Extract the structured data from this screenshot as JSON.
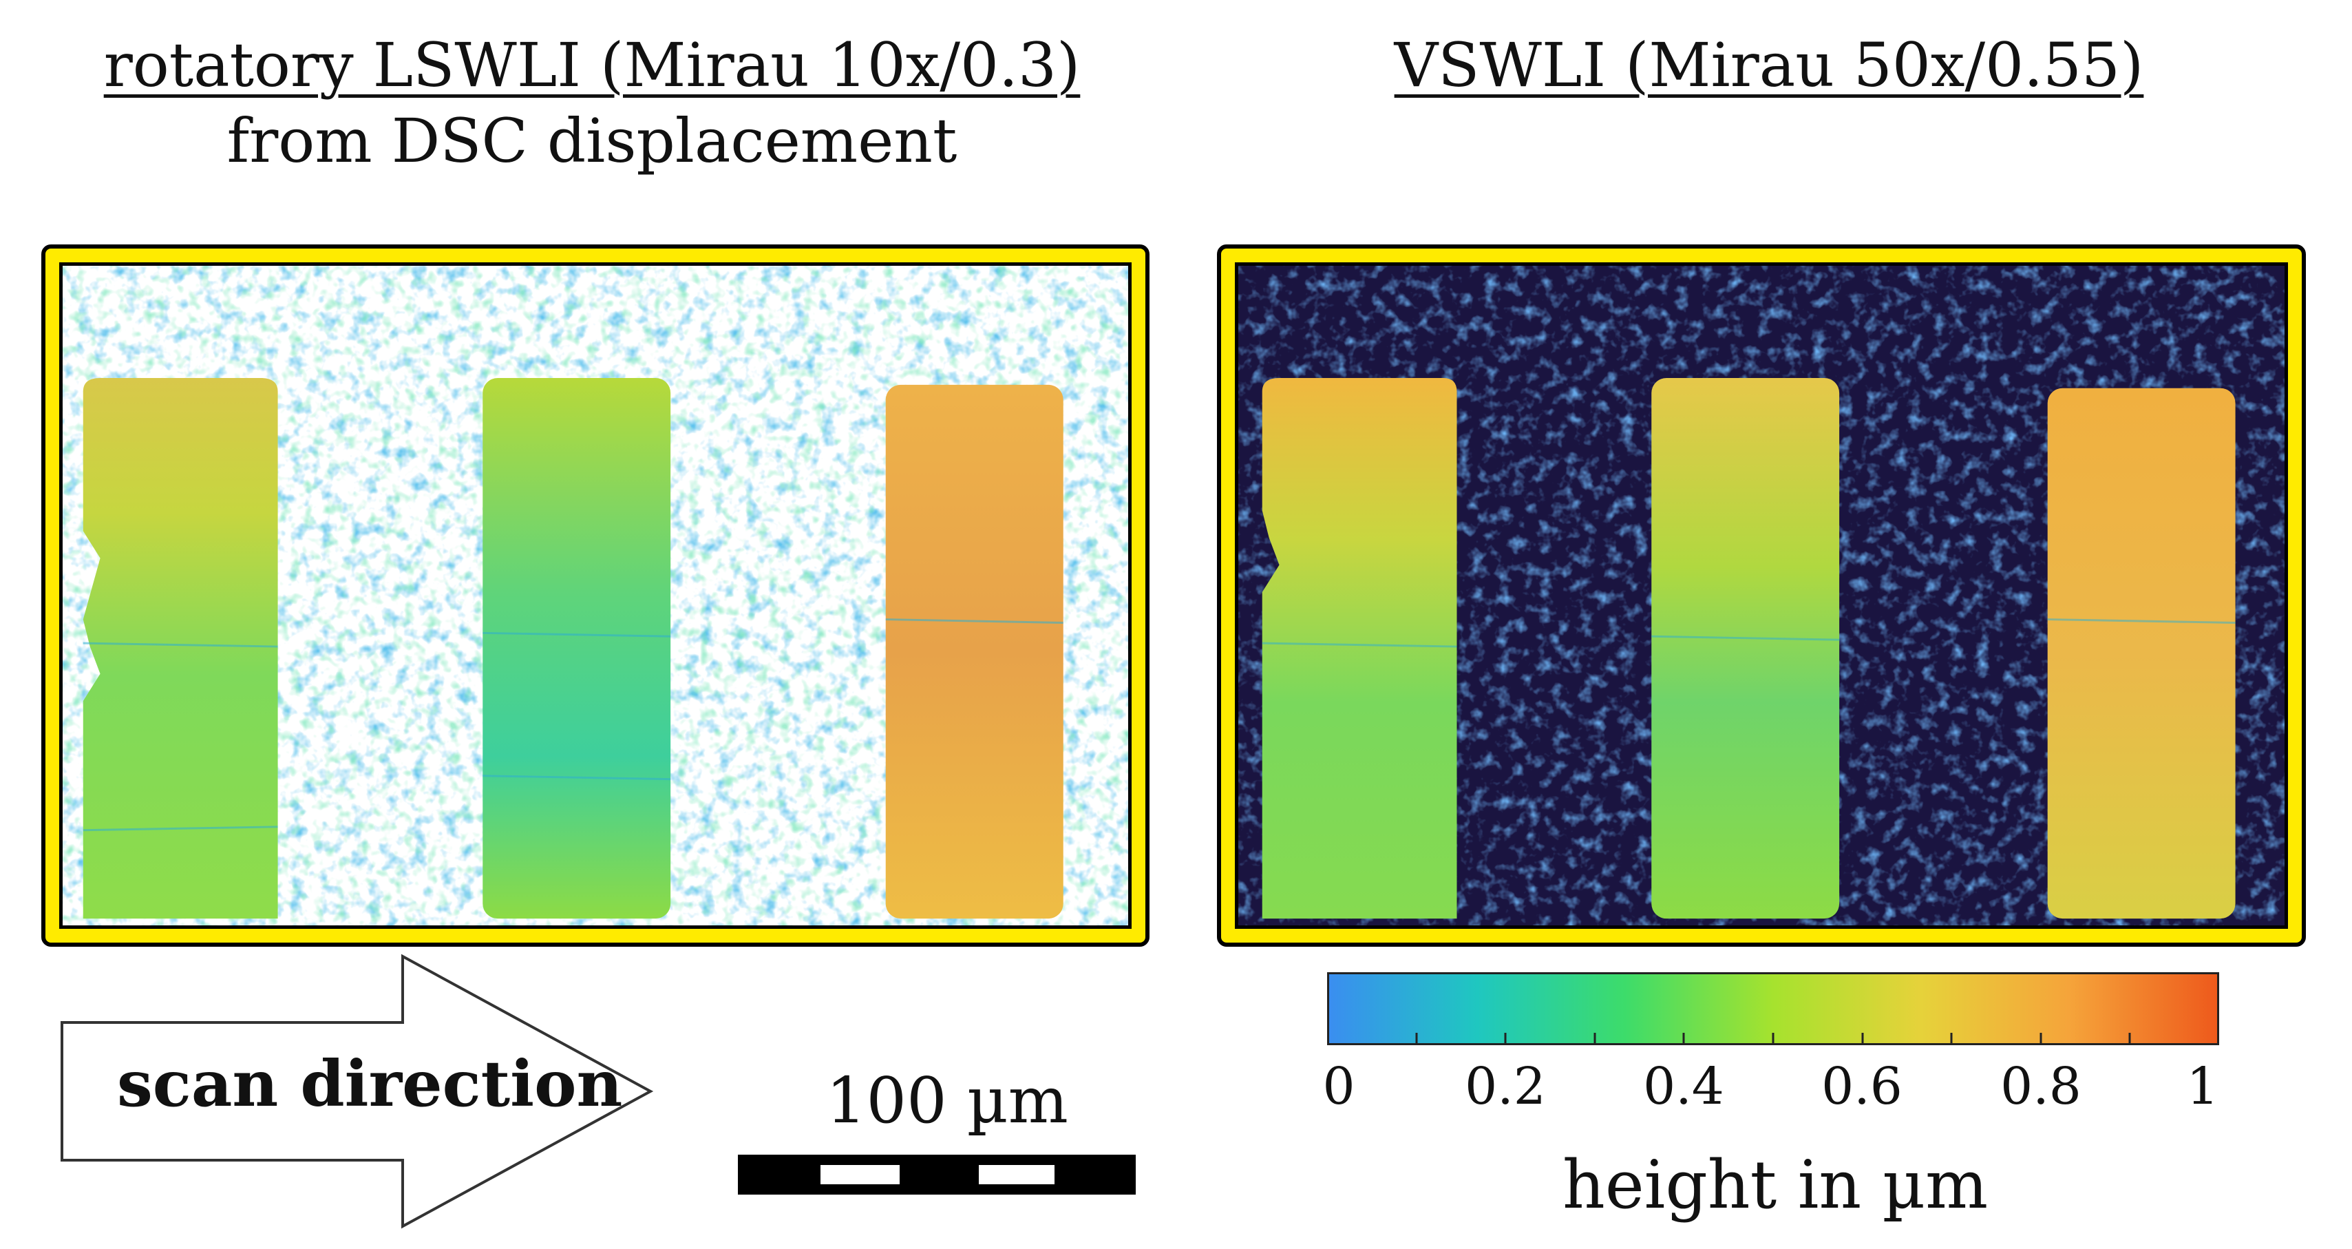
{
  "left_panel": {
    "title_line1": "rotatory LSWLI (Mirau 10x/0.3)",
    "title_line2": "from DSC displacement"
  },
  "right_panel": {
    "title_line1": "VSWLI (Mirau 50x/0.55)"
  },
  "arrow": {
    "label": "scan direction"
  },
  "scale": {
    "label": "100 µm"
  },
  "colorbar": {
    "ticks": [
      "0",
      "0.2",
      "0.4",
      "0.6",
      "0.8",
      "1"
    ],
    "caption": "height in µm",
    "colors": [
      "#3a8ef0",
      "#1fc7c0",
      "#3ddc6a",
      "#a6e22e",
      "#e6d23a",
      "#f5a43a",
      "#ee5a1c"
    ]
  },
  "colors": {
    "frame": "#ffeb00",
    "dark_background": "#1a1440",
    "left_background": "#ffffff"
  }
}
